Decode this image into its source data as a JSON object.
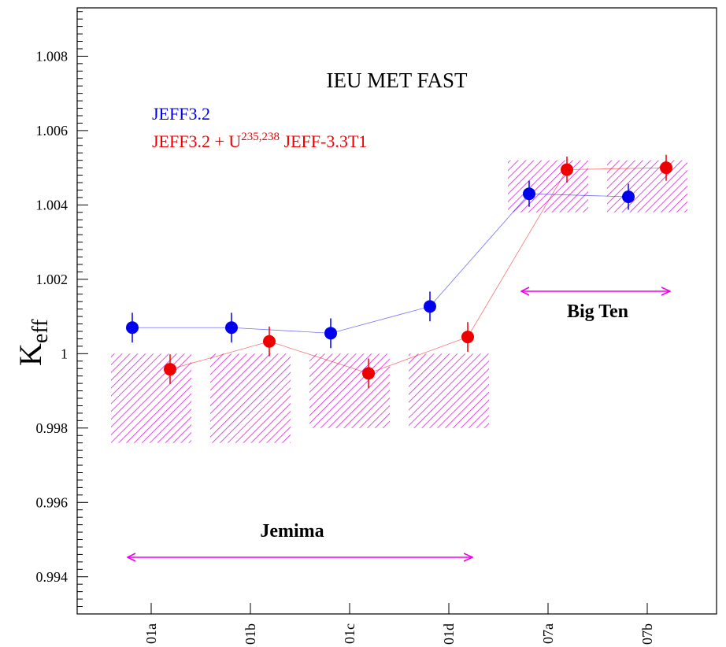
{
  "chart_data": {
    "type": "scatter",
    "title": "IEU MET FAST",
    "ylabel": "K",
    "ylabel_sub": "eff",
    "categories": [
      "01a",
      "01b",
      "01c",
      "01d",
      "07a",
      "07b"
    ],
    "yticks": [
      "0.994",
      "0.996",
      "0.998",
      "1",
      "1.002",
      "1.004",
      "1.006",
      "1.008"
    ],
    "ylim": [
      0.993,
      1.0093
    ],
    "series": [
      {
        "name": "JEFF3.2",
        "color": "#0000ee",
        "values": [
          1.0007,
          1.0007,
          1.00055,
          1.00127,
          1.0043,
          1.00422
        ],
        "errors": [
          0.0004,
          0.0004,
          0.0004,
          0.0004,
          0.00035,
          0.00035
        ]
      },
      {
        "name_main": "JEFF3.2 + U",
        "name_sup": "235,238",
        "name_tail": " JEFF-3.3T1",
        "color": "#ee0000",
        "values": [
          0.99958,
          1.00033,
          0.99947,
          1.00045,
          1.00495,
          1.005
        ],
        "errors": [
          0.0004,
          0.0004,
          0.0004,
          0.0004,
          0.00035,
          0.00035
        ]
      }
    ],
    "uncertainty_bands": [
      {
        "category": "01a",
        "low": 0.9976,
        "high": 1.0
      },
      {
        "category": "01b",
        "low": 0.9976,
        "high": 1.0
      },
      {
        "category": "01c",
        "low": 0.998,
        "high": 1.0
      },
      {
        "category": "01d",
        "low": 0.998,
        "high": 1.0
      },
      {
        "category": "07a",
        "low": 1.0038,
        "high": 1.0052
      },
      {
        "category": "07b",
        "low": 1.0038,
        "high": 1.0052
      }
    ],
    "groups": [
      {
        "label": "Jemima",
        "from": "01a",
        "to": "01d"
      },
      {
        "label": "Big Ten",
        "from": "07a",
        "to": "07b"
      }
    ],
    "annotation_color": "#ee00ee"
  }
}
